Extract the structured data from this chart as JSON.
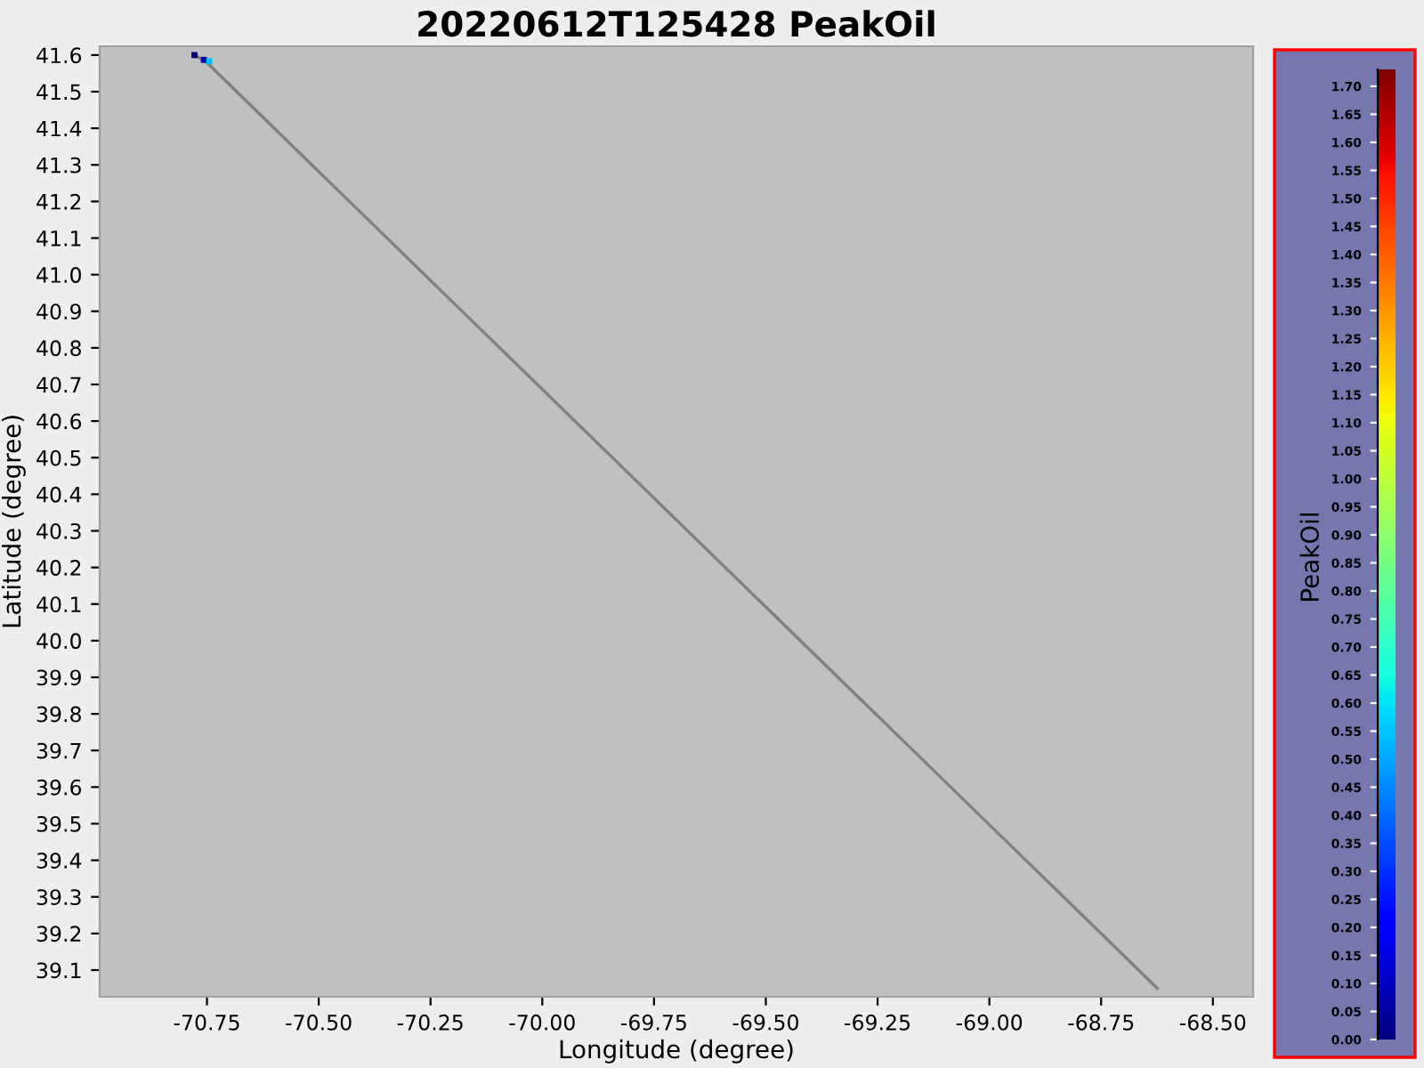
{
  "chart_data": {
    "type": "scatter",
    "title": "20220612T125428 PeakOil",
    "xlabel": "Longitude (degree)",
    "ylabel": "Latitude (degree)",
    "clabel": "PeakOil",
    "series": [
      {
        "type": "line",
        "color": "#808080",
        "x": [
          -70.778,
          -70.755,
          -68.624
        ],
        "values": [
          41.6,
          41.585,
          39.05
        ]
      },
      {
        "x": [
          -70.778,
          -70.757,
          -70.745
        ],
        "values": [
          41.6,
          41.587,
          41.583
        ],
        "colors": [
          "#000080",
          "#0000b0",
          "#00c0ff"
        ],
        "marker": "square"
      }
    ],
    "xlim": [
      -70.99,
      -68.41
    ],
    "ylim": [
      39.027,
      41.624
    ],
    "xticks": [
      -70.75,
      {
        "value": -70.5,
        "label": "-70.50"
      },
      -70.25,
      {
        "value": -70.0,
        "label": "-70.00"
      },
      -69.75,
      {
        "value": -69.5,
        "label": "-69.50"
      },
      -69.25,
      {
        "value": -69.0,
        "label": "-69.00"
      },
      -68.75,
      {
        "value": -68.5,
        "label": "-68.50"
      }
    ],
    "yticks": [
      39.1,
      39.2,
      39.3,
      39.4,
      39.5,
      39.6,
      39.7,
      39.8,
      39.9,
      {
        "value": 40.0,
        "label": "40.0"
      },
      40.1,
      40.2,
      40.3,
      40.4,
      40.5,
      40.6,
      40.7,
      40.8,
      40.9,
      {
        "value": 41.0,
        "label": "41.0"
      },
      41.1,
      41.2,
      41.3,
      41.4,
      41.5,
      41.6
    ],
    "clim": [
      0,
      1.73
    ],
    "cticks": [
      {
        "value": 0,
        "label": "0.00"
      },
      0.05,
      {
        "value": 0.1,
        "label": "0.10"
      },
      0.15,
      {
        "value": 0.2,
        "label": "0.20"
      },
      0.25,
      {
        "value": 0.3,
        "label": "0.30"
      },
      0.35,
      {
        "value": 0.4,
        "label": "0.40"
      },
      0.45,
      {
        "value": 0.5,
        "label": "0.50"
      },
      0.55,
      {
        "value": 0.6,
        "label": "0.60"
      },
      0.65,
      {
        "value": 0.7,
        "label": "0.70"
      },
      0.75,
      {
        "value": 0.8,
        "label": "0.80"
      },
      0.85,
      {
        "value": 0.9,
        "label": "0.90"
      },
      0.95,
      {
        "value": 1.0,
        "label": "1.00"
      },
      1.05,
      {
        "value": 1.1,
        "label": "1.10"
      },
      1.15,
      {
        "value": 1.2,
        "label": "1.20"
      },
      1.25,
      {
        "value": 1.3,
        "label": "1.30"
      },
      1.35,
      {
        "value": 1.4,
        "label": "1.40"
      },
      1.45,
      {
        "value": 1.5,
        "label": "1.50"
      },
      1.55,
      {
        "value": 1.6,
        "label": "1.60"
      },
      1.65,
      {
        "value": 1.7,
        "label": "1.70"
      }
    ],
    "grid": false
  }
}
